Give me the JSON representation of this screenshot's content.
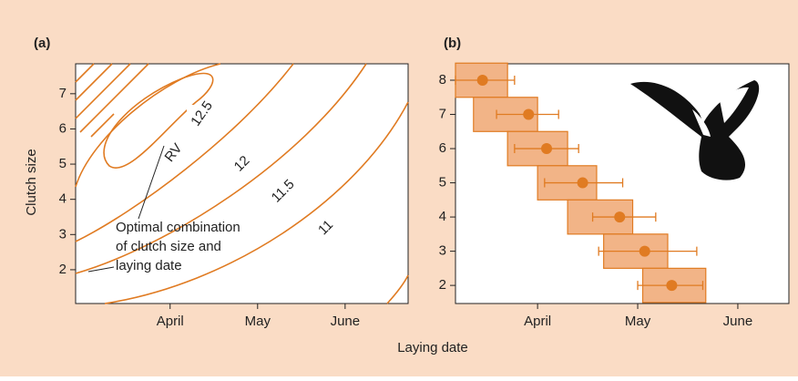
{
  "xlabel": "Laying date",
  "ylabel": "Clutch size",
  "chart_data": [
    {
      "type": "contour",
      "panel_label": "(a)",
      "xlim": [
        -0.08,
        3.72
      ],
      "ylim": [
        1.04,
        7.85
      ],
      "xticks": [
        {
          "value": 1,
          "label": "April"
        },
        {
          "value": 2,
          "label": "May"
        },
        {
          "value": 3,
          "label": "June"
        }
      ],
      "yticks": [
        2,
        3,
        4,
        5,
        6,
        7
      ],
      "contour_labels": [
        "RV",
        "12.5",
        "12",
        "11.5",
        "11"
      ],
      "annotation": [
        "Optimal combination",
        "of clutch size and",
        "laying date"
      ],
      "color": "#e07b22"
    },
    {
      "type": "box",
      "panel_label": "(b)",
      "xlim": [
        0.18,
        3.51
      ],
      "ylim": [
        1.47,
        8.48
      ],
      "xticks": [
        {
          "value": 1,
          "label": "April"
        },
        {
          "value": 2,
          "label": "May"
        },
        {
          "value": 3,
          "label": "June"
        }
      ],
      "yticks": [
        2,
        3,
        4,
        5,
        6,
        7,
        8
      ],
      "y": [
        8,
        7,
        6,
        5,
        4,
        3,
        2
      ],
      "x": [
        0.45,
        0.91,
        1.09,
        1.45,
        1.82,
        2.07,
        2.34
      ],
      "box_x": [
        [
          0.18,
          0.7
        ],
        [
          0.36,
          1.0
        ],
        [
          0.7,
          1.3
        ],
        [
          1.0,
          1.59
        ],
        [
          1.3,
          1.95
        ],
        [
          1.66,
          2.3
        ],
        [
          2.05,
          2.68
        ]
      ],
      "err_x": [
        [
          0.18,
          0.77
        ],
        [
          0.59,
          1.21
        ],
        [
          0.77,
          1.41
        ],
        [
          1.07,
          1.85
        ],
        [
          1.55,
          2.18
        ],
        [
          1.61,
          2.59
        ],
        [
          2.0,
          2.65
        ]
      ],
      "color": "#e07b22",
      "box_color": "#f2b487"
    }
  ]
}
